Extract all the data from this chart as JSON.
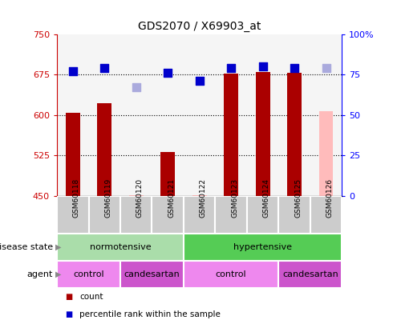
{
  "title": "GDS2070 / X69903_at",
  "samples": [
    "GSM60118",
    "GSM60119",
    "GSM60120",
    "GSM60121",
    "GSM60122",
    "GSM60123",
    "GSM60124",
    "GSM60125",
    "GSM60126"
  ],
  "count_values": [
    604,
    622,
    null,
    532,
    null,
    677,
    679,
    678,
    null
  ],
  "count_absent": [
    null,
    null,
    452,
    null,
    452,
    null,
    null,
    null,
    607
  ],
  "rank_values": [
    77,
    79,
    null,
    76,
    71,
    79,
    80,
    79,
    null
  ],
  "rank_absent": [
    null,
    null,
    67,
    null,
    null,
    null,
    null,
    null,
    79
  ],
  "ylim_left": [
    450,
    750
  ],
  "ylim_right": [
    0,
    100
  ],
  "yticks_left": [
    450,
    525,
    600,
    675,
    750
  ],
  "yticks_right": [
    0,
    25,
    50,
    75,
    100
  ],
  "ytick_labels_right": [
    "0",
    "25",
    "50",
    "75",
    "100%"
  ],
  "hlines": [
    525,
    600,
    675
  ],
  "disease_state": [
    {
      "label": "normotensive",
      "start": 0,
      "end": 4,
      "color": "#aaddaa"
    },
    {
      "label": "hypertensive",
      "start": 4,
      "end": 9,
      "color": "#55cc55"
    }
  ],
  "agent": [
    {
      "label": "control",
      "start": 0,
      "end": 2,
      "color": "#ee88ee"
    },
    {
      "label": "candesartan",
      "start": 2,
      "end": 4,
      "color": "#cc55cc"
    },
    {
      "label": "control",
      "start": 4,
      "end": 7,
      "color": "#ee88ee"
    },
    {
      "label": "candesartan",
      "start": 7,
      "end": 9,
      "color": "#cc55cc"
    }
  ],
  "bar_color_present": "#aa0000",
  "bar_color_absent": "#ffbbbb",
  "rank_color_present": "#0000cc",
  "rank_color_absent": "#aaaadd",
  "bar_width": 0.45,
  "rank_marker_size": 55,
  "xtick_bg": "#cccccc",
  "plot_bg": "#f5f5f5"
}
